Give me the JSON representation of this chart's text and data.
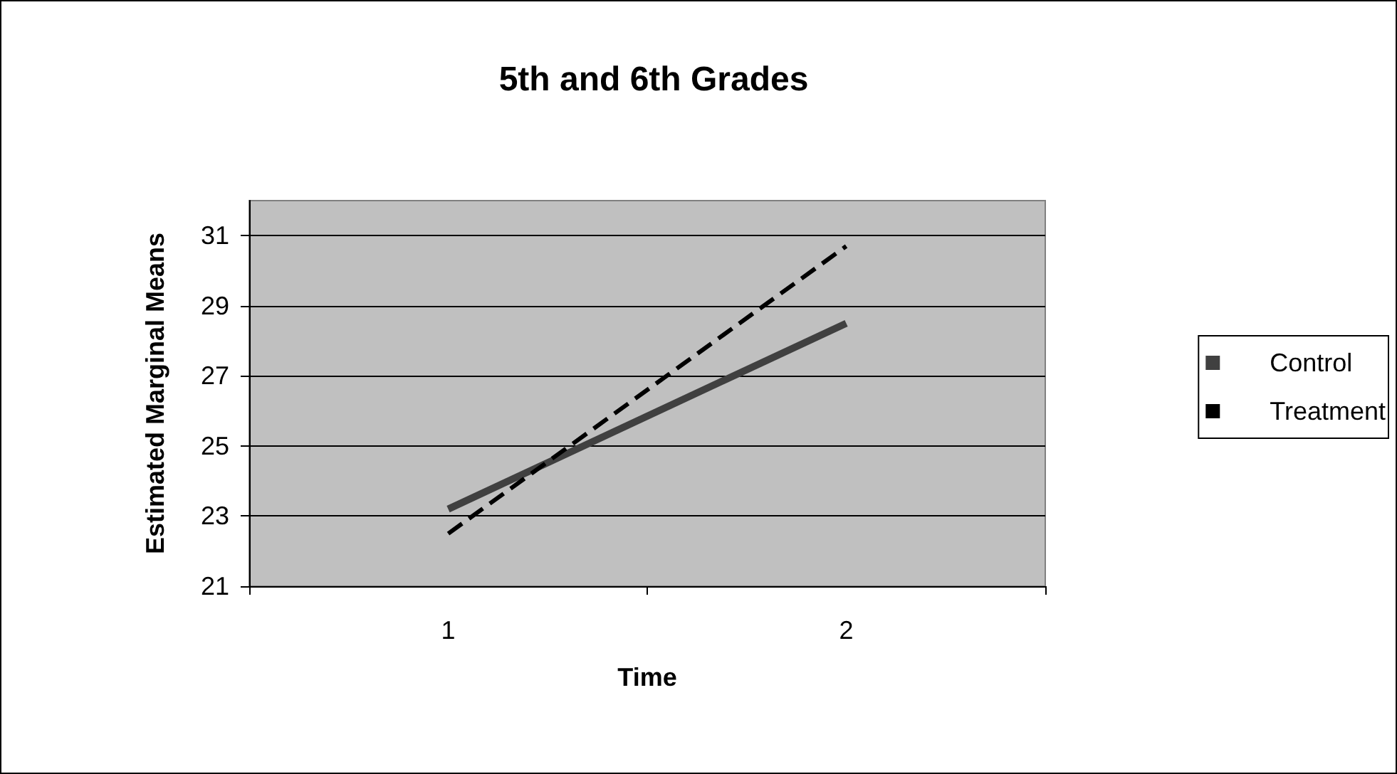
{
  "chart_data": {
    "type": "line",
    "title": "5th and 6th Grades",
    "xlabel": "Time",
    "ylabel": "Estimated Marginal Means",
    "categories": [
      "1",
      "2"
    ],
    "series": [
      {
        "name": "Control",
        "color": "#404040",
        "values": [
          23.2,
          28.5
        ],
        "line_style": "solid"
      },
      {
        "name": "Treatment",
        "color": "#000000",
        "values": [
          22.5,
          30.7
        ],
        "line_style": "dashed"
      }
    ],
    "ylim": [
      21,
      32
    ],
    "yticks": [
      21,
      23,
      25,
      27,
      29,
      31
    ],
    "grid": "y",
    "legend": "right",
    "marker": "none"
  }
}
